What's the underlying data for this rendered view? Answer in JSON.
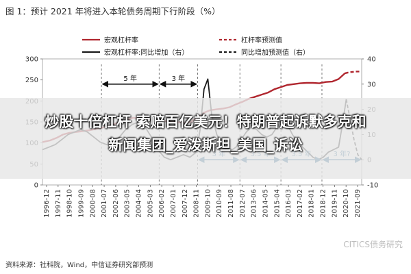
{
  "figure": {
    "title": "图 1：预计 2021 年将进入本轮债务周期下行阶段（%）",
    "source": "资料来源：社科院，Wind，中信证券研究部预测",
    "watermark": "CITICS债务研究"
  },
  "headline": {
    "line1": "炒股十倍杠杆 索赔百亿美元！特朗普起诉默多克和",
    "line2": "新闻集团_爱泼斯坦_美国_诉讼"
  },
  "colors": {
    "leverage": "#b0262e",
    "yoy": "#1a1a1a",
    "annotation": "#1f5d8a"
  },
  "chart_data": {
    "type": "line",
    "title": "",
    "x_ticks": [
      "1996-12",
      "1997-11",
      "1998-10",
      "1999-09",
      "2000-08",
      "2001-07",
      "2002-06",
      "2003-05",
      "2004-04",
      "2005-03",
      "2006-02",
      "2007-01",
      "2007-12",
      "2008-11",
      "2009-10",
      "2010-09",
      "2011-08",
      "2012-07",
      "2013-06",
      "2014-05",
      "2015-04",
      "2016-03",
      "2017-02",
      "2018-01",
      "2018-12",
      "2019-11",
      "2020-10",
      "2021-09"
    ],
    "y_left": {
      "min": 0,
      "max": 300,
      "ticks": [
        "0",
        "50",
        "100",
        "150",
        "200",
        "250",
        "300"
      ]
    },
    "y_right": {
      "min": -10,
      "max": 40,
      "ticks": [
        "-10",
        "0",
        "10",
        "20",
        "30",
        "40"
      ]
    },
    "legend": {
      "placement": "top",
      "items": [
        {
          "label": "宏观杠杆率",
          "style": "solid",
          "color": "#b0262e"
        },
        {
          "label": "杠杆率预测值",
          "style": "dashed",
          "color": "#b0262e"
        },
        {
          "label": "宏观杠杆率:同比增加（右）",
          "style": "solid",
          "color": "#1a1a1a"
        },
        {
          "label": "同比增加预测值（右）",
          "style": "dashed",
          "color": "#1a1a1a"
        }
      ]
    },
    "series": [
      {
        "name": "宏观杠杆率",
        "axis": "left",
        "x": [
          1996.9,
          1997.5,
          1998.0,
          1998.5,
          1999.0,
          1999.5,
          2000.0,
          2000.5,
          2001.0,
          2001.5,
          2002.0,
          2002.5,
          2003.0,
          2003.5,
          2004.0,
          2004.5,
          2005.0,
          2005.5,
          2006.0,
          2006.5,
          2007.0,
          2007.5,
          2008.0,
          2008.5,
          2009.0,
          2009.5,
          2010.0,
          2010.5,
          2011.0,
          2011.5,
          2012.0,
          2012.5,
          2013.0,
          2013.5,
          2014.0,
          2014.5,
          2015.0,
          2015.5,
          2016.0,
          2016.5,
          2017.0,
          2017.5,
          2018.0,
          2018.5,
          2019.0,
          2019.5,
          2020.0,
          2020.5
        ],
        "values": [
          102,
          106,
          112,
          120,
          124,
          126,
          128,
          130,
          133,
          136,
          140,
          145,
          150,
          156,
          160,
          158,
          157,
          155,
          153,
          152,
          150,
          149,
          148,
          150,
          162,
          172,
          178,
          180,
          182,
          185,
          192,
          198,
          205,
          210,
          215,
          220,
          228,
          233,
          238,
          240,
          242,
          243,
          243,
          242,
          245,
          246,
          252,
          266
        ]
      },
      {
        "name": "杠杆率预测值",
        "axis": "left",
        "x": [
          2020.5,
          2020.8,
          2021.1,
          2021.4,
          2021.7
        ],
        "values": [
          266,
          268,
          269,
          270,
          270
        ]
      },
      {
        "name": "宏观杠杆率:同比增加（右）",
        "axis": "right",
        "x": [
          1996.9,
          1997.4,
          1997.9,
          1998.4,
          1998.9,
          1999.4,
          1999.9,
          2000.4,
          2000.9,
          2001.4,
          2001.9,
          2002.4,
          2002.9,
          2003.4,
          2003.9,
          2004.4,
          2004.9,
          2005.4,
          2005.9,
          2006.4,
          2006.9,
          2007.4,
          2007.9,
          2008.4,
          2008.9,
          2009.2,
          2009.5,
          2009.8,
          2010.1,
          2010.5,
          2010.9,
          2011.3,
          2011.7,
          2012.0,
          2012.4,
          2012.8,
          2013.2,
          2013.6,
          2014.0,
          2014.4,
          2014.8,
          2015.2,
          2015.6,
          2016.0,
          2016.4,
          2016.8,
          2017.2,
          2017.6,
          2018.0,
          2018.4,
          2018.8,
          2019.2,
          2019.6,
          2020.0,
          2020.3,
          2020.6
        ],
        "values": [
          4,
          5,
          6,
          8,
          10,
          11,
          12,
          11,
          9,
          7,
          6,
          7,
          9,
          12,
          14,
          15,
          13,
          9,
          4,
          1,
          0,
          1,
          2,
          1,
          3,
          12,
          28,
          32,
          18,
          10,
          6,
          5,
          4,
          5,
          8,
          11,
          13,
          12,
          10,
          9,
          10,
          13,
          16,
          14,
          10,
          7,
          5,
          3,
          1,
          0,
          1,
          3,
          4,
          5,
          14,
          24
        ]
      },
      {
        "name": "同比增加预测值（右）",
        "axis": "right",
        "x": [
          2020.6,
          2020.9,
          2021.2,
          2021.5,
          2021.8
        ],
        "values": [
          24,
          16,
          8,
          2,
          0
        ]
      }
    ],
    "annotations": [
      {
        "label": "5 年",
        "from": 2001.5,
        "to": 2006.0,
        "axis": "right",
        "y": 30,
        "color": "#111111"
      },
      {
        "label": "3 年",
        "from": 2006.0,
        "to": 2009.0,
        "axis": "right",
        "y": 30,
        "color": "#111111"
      },
      {
        "label": "3 年",
        "from": 2009.0,
        "to": 2012.3,
        "axis": "right",
        "y": 0,
        "color": "#1f5d8a"
      },
      {
        "label": "3.5 年",
        "from": 2012.3,
        "to": 2015.5,
        "axis": "right",
        "y": 0,
        "color": "#1f5d8a"
      },
      {
        "label": "3.5 年",
        "from": 2015.5,
        "to": 2018.7,
        "axis": "right",
        "y": 0,
        "color": "#1f5d8a"
      },
      {
        "label": "3 年?",
        "from": 2018.7,
        "to": 2021.8,
        "axis": "right",
        "y": 0,
        "color": "#1f5d8a"
      }
    ],
    "reference_lines": [
      2001.5,
      2006.0,
      2009.0,
      2012.3,
      2015.5,
      2018.7
    ]
  }
}
